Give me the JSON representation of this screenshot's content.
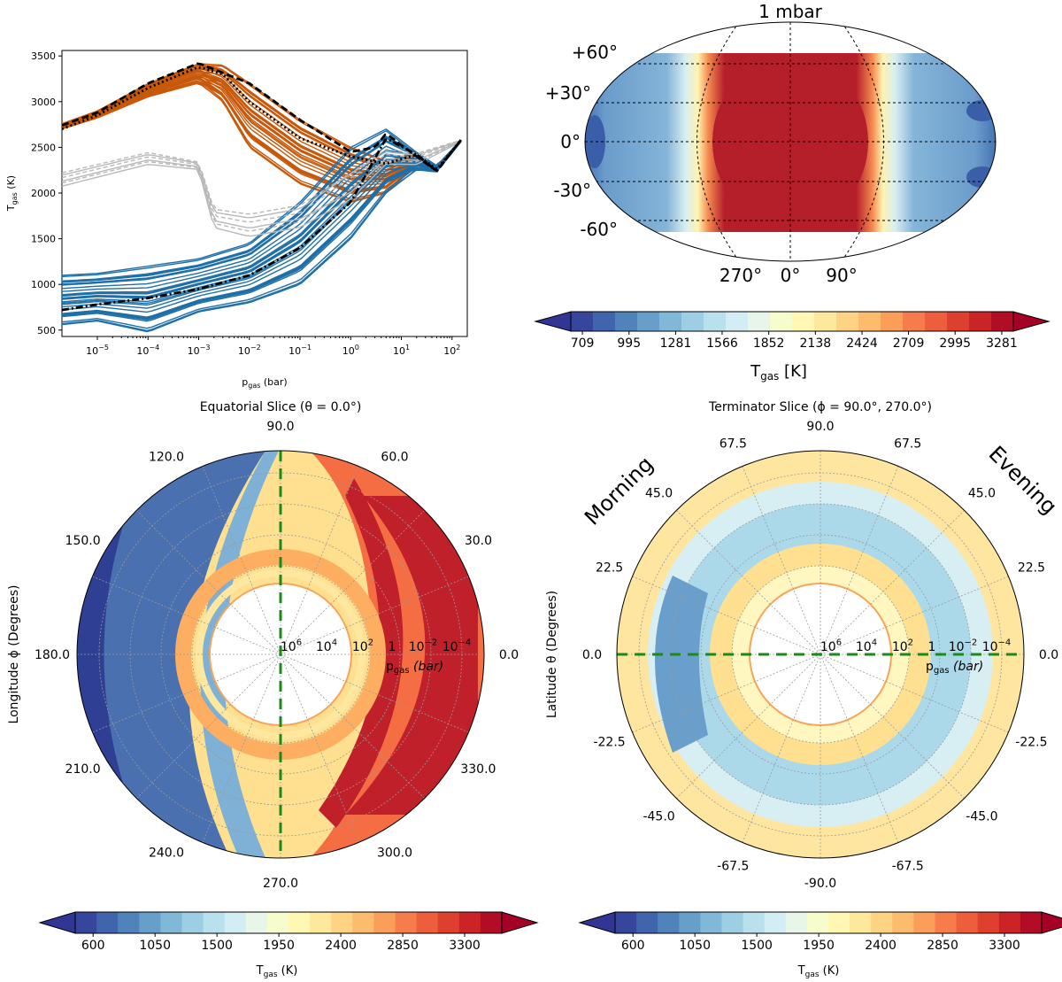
{
  "panels": {
    "profiles": {
      "ylabel": "T",
      "ylabel_sub": "gas",
      "ylabel_unit": "(K)",
      "xlabel": "p",
      "xlabel_sub": "gas",
      "xlabel_unit": "(bar)",
      "yticks": [
        "500",
        "1000",
        "1500",
        "2000",
        "2500",
        "3000",
        "3500"
      ],
      "xticks": [
        {
          "base": "10",
          "exp": "−5"
        },
        {
          "base": "10",
          "exp": "−4"
        },
        {
          "base": "10",
          "exp": "−3"
        },
        {
          "base": "10",
          "exp": "−2"
        },
        {
          "base": "10",
          "exp": "−1"
        },
        {
          "base": "10",
          "exp": "0"
        },
        {
          "base": "10",
          "exp": "1"
        },
        {
          "base": "10",
          "exp": "2"
        }
      ]
    },
    "map": {
      "title": "1 mbar",
      "lat_labels": [
        "+60°",
        "+30°",
        "0°",
        "-30°",
        "-60°"
      ],
      "lon_labels": [
        "270°",
        "0°",
        "90°"
      ],
      "colorbar_ticks": [
        "709",
        "995",
        "1281",
        "1566",
        "1852",
        "2138",
        "2424",
        "2709",
        "2995",
        "3281"
      ],
      "colorbar_label": "T",
      "colorbar_label_sub": "gas",
      "colorbar_label_unit": "[K]"
    },
    "equatorial": {
      "title": "Equatorial Slice (θ  =  0.0°)",
      "angle_labels": [
        "90.0",
        "60.0",
        "30.0",
        "0.0",
        "330.0",
        "300.0",
        "270.0",
        "240.0",
        "210.0",
        "180.0",
        "150.0",
        "120.0"
      ],
      "ylabel": "Longitude ϕ (Degrees)",
      "radial_labels": [
        {
          "base": "10",
          "exp": "6"
        },
        {
          "base": "10",
          "exp": "4"
        },
        {
          "base": "10",
          "exp": "2"
        },
        {
          "base": "1",
          "exp": ""
        },
        {
          "base": "10",
          "exp": "−2"
        },
        {
          "base": "10",
          "exp": "−4"
        }
      ],
      "radial_unit": "(bar)",
      "radial_var": "p",
      "radial_var_sub": "gas"
    },
    "terminator": {
      "title": "Terminator Slice (ϕ  =  90.0°, 270.0°)",
      "angle_labels": [
        "90.0",
        "67.5",
        "45.0",
        "22.5",
        "0.0",
        "-22.5",
        "-45.0",
        "-67.5",
        "-90.0",
        "-67.5",
        "-45.0",
        "-22.5",
        "0.0",
        "22.5",
        "45.0",
        "67.5"
      ],
      "ylabel": "Latitude θ (Degrees)",
      "morning": "Morning",
      "evening": "Evening"
    },
    "colorbar_bottom": {
      "ticks": [
        "600",
        "1050",
        "1500",
        "1950",
        "2400",
        "2850",
        "3300"
      ],
      "label": "T",
      "label_sub": "gas",
      "label_unit": "(K)"
    }
  },
  "colors": {
    "dayside": "#c8580a",
    "nightside": "#1f6fa8",
    "terminator": "#b8b8b8",
    "mean_line": "#000000",
    "slice_marker": "#1a8a1a",
    "colormap": [
      "#313695",
      "#4575b4",
      "#74add1",
      "#abd9e9",
      "#e0f3f8",
      "#ffffbf",
      "#fee090",
      "#fdae61",
      "#f46d43",
      "#d73027",
      "#a50026"
    ]
  },
  "chart_data": [
    {
      "type": "line",
      "xscale": "log",
      "xlim": [
        2e-06,
        200
      ],
      "ylim": [
        430,
        3560
      ],
      "xlabel": "pgas (bar)",
      "ylabel": "Tgas (K)",
      "series": [
        {
          "group": "dayside",
          "count": 30,
          "x": [
            2e-06,
            1e-05,
            0.0001,
            0.001,
            0.003,
            0.01,
            0.1,
            1,
            5,
            20,
            50,
            150
          ],
          "y_range": [
            [
              2700,
              2760
            ],
            [
              2820,
              2900
            ],
            [
              3050,
              3200
            ],
            [
              3200,
              3420
            ],
            [
              3000,
              3400
            ],
            [
              2500,
              3200
            ],
            [
              2100,
              2800
            ],
            [
              1900,
              2500
            ],
            [
              2000,
              2350
            ],
            [
              2300,
              2450
            ],
            [
              2250,
              2300
            ],
            [
              2560,
              2580
            ]
          ]
        },
        {
          "group": "nightside",
          "count": 30,
          "x": [
            2e-06,
            1e-05,
            0.0001,
            0.001,
            0.01,
            0.1,
            1,
            5,
            20,
            50,
            150
          ],
          "y_range": [
            [
              560,
              1100
            ],
            [
              600,
              1120
            ],
            [
              480,
              1200
            ],
            [
              700,
              1280
            ],
            [
              800,
              1450
            ],
            [
              1000,
              1900
            ],
            [
              1500,
              2500
            ],
            [
              2000,
              2700
            ],
            [
              2250,
              2450
            ],
            [
              2230,
              2300
            ],
            [
              2560,
              2580
            ]
          ]
        },
        {
          "group": "terminator",
          "count": 6,
          "x": [
            2e-06,
            0.0001,
            0.001,
            0.002,
            0.01,
            0.1,
            1,
            5,
            20,
            150
          ],
          "y_range": [
            [
              2060,
              2240
            ],
            [
              2300,
              2460
            ],
            [
              2250,
              2350
            ],
            [
              1600,
              1850
            ],
            [
              1500,
              1800
            ],
            [
              1600,
              1900
            ],
            [
              1900,
              2300
            ],
            [
              2300,
              2500
            ],
            [
              2300,
              2450
            ],
            [
              2560,
              2580
            ]
          ]
        },
        {
          "name": "",
          "style": "dotted",
          "x": [
            2e-06,
            1e-05,
            0.0001,
            0.001,
            0.003,
            0.01,
            0.1,
            1,
            5,
            20,
            50,
            150
          ],
          "y": [
            2700,
            2850,
            3150,
            3380,
            3300,
            3000,
            2600,
            2400,
            2320,
            2420,
            2260,
            2580
          ]
        },
        {
          "name": "",
          "style": "dashdot",
          "x": [
            2e-06,
            1e-05,
            0.0001,
            0.001,
            0.01,
            0.1,
            1,
            5,
            20,
            50,
            150
          ],
          "y": [
            720,
            780,
            850,
            950,
            1100,
            1400,
            1900,
            2600,
            2420,
            2240,
            2580
          ]
        },
        {
          "name": "",
          "style": "dashed",
          "x": [
            2e-06,
            1e-05,
            0.0001,
            0.001,
            0.01,
            0.1,
            1,
            3,
            5,
            20,
            50,
            150
          ],
          "y": [
            2740,
            2880,
            3200,
            3420,
            3200,
            2800,
            2450,
            2500,
            2650,
            2400,
            2240,
            2580
          ]
        }
      ]
    },
    {
      "type": "heatmap",
      "projection": "robinson-like",
      "title": "1 mbar",
      "clim": [
        709,
        3281
      ],
      "lat_range": [
        -60,
        60
      ],
      "description_values": {
        "dayside_max": 3281,
        "nightside_min": 709
      }
    },
    {
      "type": "heatmap",
      "projection": "polar",
      "title": "Equatorial Slice (θ = 0.0°)",
      "clim": [
        600,
        3500
      ],
      "radial_axis": "pgas (bar), log, 1e6 center to 1e-4 edge"
    },
    {
      "type": "heatmap",
      "projection": "polar",
      "title": "Terminator Slice (ϕ = 90.0°, 270.0°)",
      "clim": [
        600,
        3500
      ]
    }
  ]
}
